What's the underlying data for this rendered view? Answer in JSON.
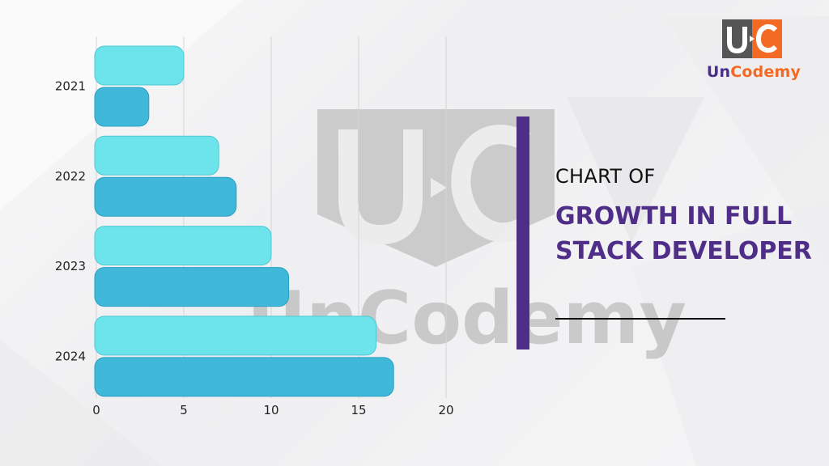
{
  "brand": {
    "logo_letters": "U·C",
    "name_part1": "Un",
    "name_part2": "Codemy",
    "watermark_text": "UnCodemy",
    "colors": {
      "purple": "#4f2e88",
      "orange": "#f26a24",
      "mark_gray": "#555555"
    }
  },
  "title": {
    "prefix": "CHART OF",
    "main": "GROWTH IN FULL STACK DEVELOPER"
  },
  "chart_data": {
    "type": "bar",
    "orientation": "horizontal",
    "categories": [
      "2021",
      "2022",
      "2023",
      "2024"
    ],
    "series": [
      {
        "values": [
          5,
          7,
          10,
          16
        ],
        "color": "#6de4eb"
      },
      {
        "values": [
          3,
          8,
          11,
          17
        ],
        "color": "#3fb8d9"
      }
    ],
    "xlim": [
      0,
      20
    ],
    "xticks": [
      0,
      5,
      10,
      15,
      20
    ],
    "grid": true,
    "xlabel": "",
    "ylabel": ""
  }
}
